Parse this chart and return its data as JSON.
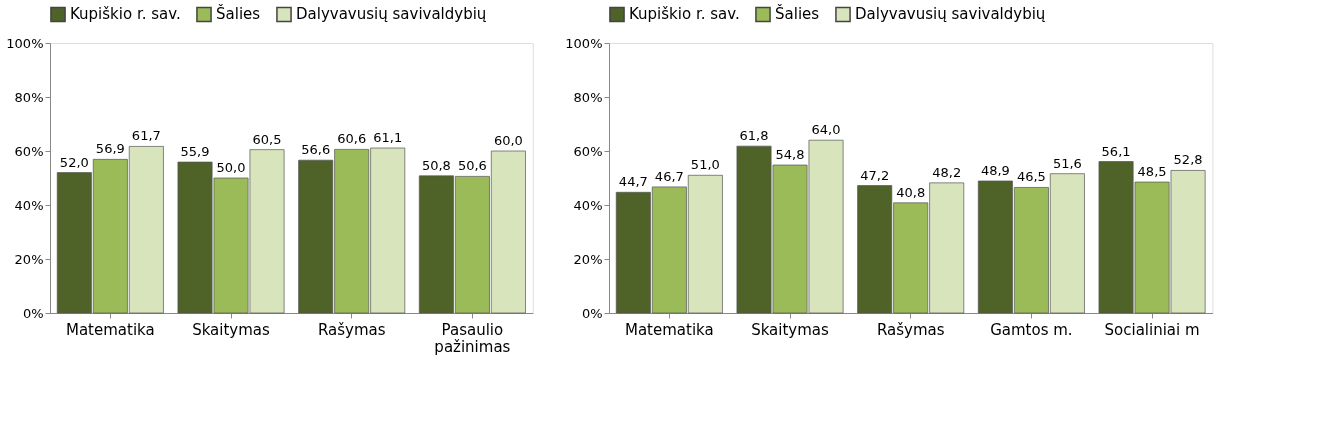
{
  "chart_data": [
    {
      "type": "bar",
      "categories": [
        "Matematika",
        "Skaitymas",
        "Rašymas",
        "Pasaulio\npažinimas"
      ],
      "series": [
        {
          "name": "Kupiškio r. sav.",
          "color": "#4f6228",
          "values": [
            52.0,
            55.9,
            56.6,
            50.8
          ],
          "value_labels": [
            "52,0",
            "55,9",
            "56,6",
            "50,8"
          ]
        },
        {
          "name": "Šalies",
          "color": "#9bbb59",
          "values": [
            56.9,
            50.0,
            60.6,
            50.6
          ],
          "value_labels": [
            "56,9",
            "50,0",
            "60,6",
            "50,6"
          ]
        },
        {
          "name": "Dalyvavusių savivaldybių",
          "color": "#d7e4bc",
          "values": [
            61.7,
            60.5,
            61.1,
            60.0
          ],
          "value_labels": [
            "61,7",
            "60,5",
            "61,1",
            "60,0"
          ]
        }
      ],
      "ylim": [
        0,
        100
      ],
      "yticks": [
        {
          "value": 0,
          "label": "0%"
        },
        {
          "value": 20,
          "label": "20%"
        },
        {
          "value": 40,
          "label": "40%"
        },
        {
          "value": 60,
          "label": "60%"
        },
        {
          "value": 80,
          "label": "80%"
        },
        {
          "value": 100,
          "label": "100%"
        }
      ],
      "grid": false,
      "legend": "top"
    },
    {
      "type": "bar",
      "categories": [
        "Matematika",
        "Skaitymas",
        "Rašymas",
        "Gamtos m.",
        "Socialiniai m"
      ],
      "series": [
        {
          "name": "Kupiškio r. sav.",
          "color": "#4f6228",
          "values": [
            44.7,
            61.8,
            47.2,
            48.9,
            56.1
          ],
          "value_labels": [
            "44,7",
            "61,8",
            "47,2",
            "48,9",
            "56,1"
          ]
        },
        {
          "name": "Šalies",
          "color": "#9bbb59",
          "values": [
            46.7,
            54.8,
            40.8,
            46.5,
            48.5
          ],
          "value_labels": [
            "46,7",
            "54,8",
            "40,8",
            "46,5",
            "48,5"
          ]
        },
        {
          "name": "Dalyvavusių savivaldybių",
          "color": "#d7e4bc",
          "values": [
            51.0,
            64.0,
            48.2,
            51.6,
            52.8
          ],
          "value_labels": [
            "51,0",
            "64,0",
            "48,2",
            "51,6",
            "52,8"
          ]
        }
      ],
      "ylim": [
        0,
        100
      ],
      "yticks": [
        {
          "value": 0,
          "label": "0%"
        },
        {
          "value": 20,
          "label": "20%"
        },
        {
          "value": 40,
          "label": "40%"
        },
        {
          "value": 60,
          "label": "60%"
        },
        {
          "value": 80,
          "label": "80%"
        },
        {
          "value": 100,
          "label": "100%"
        }
      ],
      "grid": false,
      "legend": "top"
    }
  ]
}
